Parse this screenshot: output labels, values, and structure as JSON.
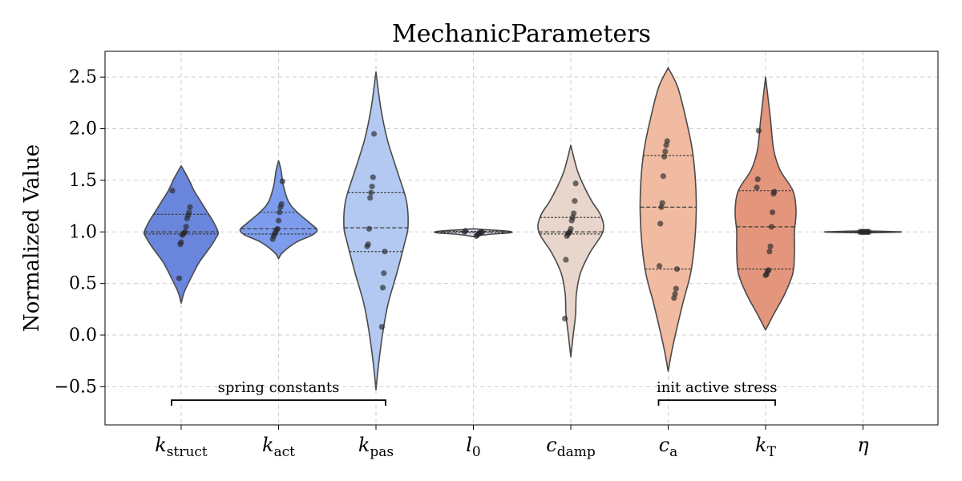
{
  "chart_data": {
    "type": "violin",
    "title": "MechanicParameters",
    "xlabel": "",
    "ylabel": "Normalized Value",
    "ylim": [
      -0.87,
      2.75
    ],
    "yticks": [
      -0.5,
      0.0,
      0.5,
      1.0,
      1.5,
      2.0,
      2.5
    ],
    "ytick_labels": [
      "−0.5",
      "0.0",
      "0.5",
      "1.0",
      "1.5",
      "2.0",
      "2.5"
    ],
    "grid": true,
    "categories": [
      {
        "label": "k",
        "sub": "struct",
        "color": "#6a86dc",
        "quartiles": [
          0.98,
          1.0,
          1.17
        ],
        "profile": [
          [
            0.31,
            0
          ],
          [
            0.42,
            4
          ],
          [
            0.55,
            12
          ],
          [
            0.7,
            22
          ],
          [
            0.85,
            36
          ],
          [
            0.95,
            44
          ],
          [
            1.0,
            46
          ],
          [
            1.1,
            40
          ],
          [
            1.2,
            32
          ],
          [
            1.3,
            24
          ],
          [
            1.4,
            16
          ],
          [
            1.5,
            10
          ],
          [
            1.6,
            3
          ],
          [
            1.64,
            0
          ]
        ],
        "points": [
          1.4,
          1.24,
          1.19,
          1.16,
          1.13,
          1.05,
          1.0,
          0.99,
          0.98,
          0.97,
          0.9,
          0.88,
          0.55
        ]
      },
      {
        "label": "k",
        "sub": "act",
        "color": "#7e9ced",
        "quartiles": [
          0.98,
          1.03,
          1.19
        ],
        "profile": [
          [
            0.74,
            0
          ],
          [
            0.8,
            5
          ],
          [
            0.9,
            22
          ],
          [
            0.97,
            42
          ],
          [
            1.02,
            48
          ],
          [
            1.08,
            40
          ],
          [
            1.2,
            22
          ],
          [
            1.3,
            12
          ],
          [
            1.45,
            6
          ],
          [
            1.6,
            3
          ],
          [
            1.69,
            0
          ]
        ],
        "points": [
          1.49,
          1.27,
          1.24,
          1.19,
          1.11,
          1.03,
          1.02,
          1.0,
          0.98,
          0.96,
          0.93
        ]
      },
      {
        "label": "k",
        "sub": "pas",
        "color": "#b3c9f2",
        "quartiles": [
          0.81,
          1.04,
          1.38
        ],
        "profile": [
          [
            -0.53,
            0
          ],
          [
            -0.3,
            3
          ],
          [
            0.0,
            8
          ],
          [
            0.3,
            15
          ],
          [
            0.6,
            26
          ],
          [
            0.9,
            36
          ],
          [
            1.05,
            40
          ],
          [
            1.3,
            38
          ],
          [
            1.6,
            26
          ],
          [
            1.9,
            14
          ],
          [
            2.2,
            6
          ],
          [
            2.55,
            0
          ]
        ],
        "points": [
          1.95,
          1.53,
          1.44,
          1.38,
          1.33,
          1.03,
          0.88,
          0.86,
          0.81,
          0.6,
          0.46,
          0.08
        ]
      },
      {
        "label": "l",
        "sub": "0",
        "color": "#d5dbeb",
        "quartiles": [
          0.995,
          1.0,
          1.005
        ],
        "profile": [
          [
            0.955,
            0
          ],
          [
            0.975,
            18
          ],
          [
            0.99,
            44
          ],
          [
            1.0,
            48
          ],
          [
            1.01,
            40
          ],
          [
            1.02,
            18
          ],
          [
            1.03,
            0
          ]
        ],
        "points": [
          1.01,
          1.0,
          1.0,
          1.0,
          0.99,
          0.99,
          0.98,
          0.97,
          0.96
        ]
      },
      {
        "label": "c",
        "sub": "damp",
        "color": "#e8d5cb",
        "quartiles": [
          0.98,
          1.0,
          1.14
        ],
        "profile": [
          [
            -0.21,
            0
          ],
          [
            0.0,
            3
          ],
          [
            0.2,
            6
          ],
          [
            0.4,
            7
          ],
          [
            0.6,
            12
          ],
          [
            0.8,
            24
          ],
          [
            1.0,
            40
          ],
          [
            1.15,
            38
          ],
          [
            1.3,
            26
          ],
          [
            1.45,
            16
          ],
          [
            1.6,
            8
          ],
          [
            1.84,
            0
          ]
        ],
        "points": [
          1.47,
          1.3,
          1.18,
          1.14,
          1.11,
          1.03,
          1.0,
          0.99,
          0.98,
          0.96,
          0.73,
          0.16
        ]
      },
      {
        "label": "c",
        "sub": "a",
        "color": "#f0bba0",
        "quartiles": [
          0.64,
          1.24,
          1.74
        ],
        "profile": [
          [
            -0.35,
            0
          ],
          [
            -0.1,
            6
          ],
          [
            0.3,
            18
          ],
          [
            0.6,
            28
          ],
          [
            0.9,
            33
          ],
          [
            1.2,
            35
          ],
          [
            1.5,
            34
          ],
          [
            1.8,
            30
          ],
          [
            2.1,
            22
          ],
          [
            2.4,
            12
          ],
          [
            2.59,
            0
          ]
        ],
        "points": [
          1.88,
          1.84,
          1.78,
          1.73,
          1.54,
          1.28,
          1.24,
          1.08,
          0.67,
          0.64,
          0.45,
          0.4,
          0.36
        ]
      },
      {
        "label": "k",
        "sub": "T",
        "color": "#e3967c",
        "quartiles": [
          0.64,
          1.05,
          1.4
        ],
        "profile": [
          [
            0.05,
            0
          ],
          [
            0.2,
            10
          ],
          [
            0.4,
            24
          ],
          [
            0.6,
            34
          ],
          [
            0.8,
            36
          ],
          [
            1.0,
            36
          ],
          [
            1.2,
            38
          ],
          [
            1.4,
            34
          ],
          [
            1.6,
            18
          ],
          [
            1.8,
            10
          ],
          [
            2.1,
            6
          ],
          [
            2.5,
            0
          ]
        ],
        "points": [
          1.98,
          1.51,
          1.43,
          1.39,
          1.37,
          1.19,
          1.05,
          0.86,
          0.81,
          0.63,
          0.62,
          0.59,
          0.58
        ]
      },
      {
        "label": "η",
        "sub": "",
        "color": "#f2f2f2",
        "quartiles": [
          1.0,
          1.0,
          1.0
        ],
        "profile": [
          [
            0.99,
            0
          ],
          [
            0.995,
            30
          ],
          [
            1.0,
            48
          ],
          [
            1.005,
            30
          ],
          [
            1.01,
            0
          ]
        ],
        "points": [
          1.0,
          1.0,
          1.0,
          1.0,
          1.0,
          1.0,
          1.0,
          1.0,
          1.0,
          1.0
        ]
      }
    ],
    "annotations": [
      {
        "text": "spring constants",
        "from": 0,
        "to": 2,
        "y": -0.63
      },
      {
        "text": "init active stress",
        "from": 5,
        "to": 6,
        "y": -0.63
      }
    ]
  }
}
